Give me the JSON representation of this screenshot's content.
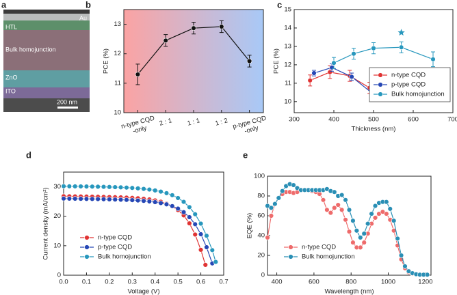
{
  "sem_image": {
    "panel": "a",
    "layers": [
      "Au",
      "HTL",
      "Bulk homojunction",
      "ZnO",
      "ITO"
    ],
    "scale_bar": "200 nm"
  },
  "chart_data": [
    {
      "panel": "b",
      "type": "line",
      "ylabel": "PCE (%)",
      "categories": [
        "n-type CQD\n-only",
        "2 : 1",
        "1 : 1",
        "1 : 2",
        "p-type CQD\n-only"
      ],
      "values": [
        11.3,
        12.45,
        12.87,
        12.92,
        11.75
      ],
      "errors": [
        0.35,
        0.2,
        0.2,
        0.2,
        0.2
      ],
      "color": "#111111",
      "ylim": [
        10,
        13.5
      ],
      "yticks": [
        10,
        11,
        12,
        13
      ]
    },
    {
      "panel": "c",
      "type": "line",
      "xlabel": "Thickness (nm)",
      "ylabel": "PCE (%)",
      "xlim": [
        300,
        700
      ],
      "xticks": [
        300,
        400,
        500,
        600,
        700
      ],
      "ylim": [
        9.4,
        15
      ],
      "yticks": [
        10,
        11,
        12,
        13,
        14,
        15
      ],
      "legend": "lower right",
      "series": [
        {
          "name": "n-type CQD",
          "color": "#e03333",
          "x": [
            340,
            390,
            440,
            490
          ],
          "values": [
            11.15,
            11.6,
            11.4,
            10.75
          ],
          "errors": [
            0.3,
            0.35,
            0.3,
            0.3
          ]
        },
        {
          "name": "p-type CQD",
          "color": "#2647b5",
          "x": [
            350,
            395,
            445,
            500
          ],
          "values": [
            11.55,
            11.85,
            11.35,
            10.4
          ],
          "errors": [
            0.15,
            0.2,
            0.2,
            0.3
          ]
        },
        {
          "name": "Bulk homojunction",
          "color": "#2797bd",
          "x": [
            400,
            450,
            500,
            570,
            650
          ],
          "values": [
            12.1,
            12.6,
            12.9,
            12.95,
            12.3
          ],
          "errors": [
            0.3,
            0.3,
            0.3,
            0.3,
            0.4
          ]
        }
      ],
      "star": {
        "x": 570,
        "y": 13.75,
        "color": "#2797bd"
      }
    },
    {
      "panel": "d",
      "type": "line",
      "xlabel": "Voltage (V)",
      "ylabel": "Current density (mA/cm²)",
      "xlim": [
        0,
        0.7
      ],
      "xticks": [
        {
          "value": 0,
          "label": "0.0"
        },
        0.1,
        0.2,
        0.3,
        0.4,
        0.5,
        0.6,
        0.7
      ],
      "ylim": [
        0,
        35
      ],
      "yticks": [
        0,
        10,
        20,
        30
      ],
      "legend": "lower left",
      "series": [
        {
          "name": "n-type CQD",
          "color": "#e03333",
          "x": [
            0,
            0.025,
            0.05,
            0.075,
            0.1,
            0.125,
            0.15,
            0.175,
            0.2,
            0.225,
            0.25,
            0.275,
            0.3,
            0.325,
            0.35,
            0.375,
            0.4,
            0.425,
            0.45,
            0.475,
            0.5,
            0.525,
            0.55,
            0.575,
            0.6,
            0.62
          ],
          "values": [
            26.8,
            26.78,
            26.75,
            26.72,
            26.7,
            26.66,
            26.62,
            26.58,
            26.53,
            26.48,
            26.42,
            26.34,
            26.25,
            26.12,
            25.95,
            25.72,
            25.4,
            24.95,
            24.3,
            23.4,
            22.1,
            20.3,
            17.6,
            13.8,
            8.6,
            3.5
          ]
        },
        {
          "name": "p-type CQD",
          "color": "#2647b5",
          "x": [
            0,
            0.025,
            0.05,
            0.075,
            0.1,
            0.125,
            0.15,
            0.175,
            0.2,
            0.225,
            0.25,
            0.275,
            0.3,
            0.325,
            0.35,
            0.375,
            0.4,
            0.425,
            0.45,
            0.475,
            0.5,
            0.525,
            0.55,
            0.575,
            0.6,
            0.625,
            0.65
          ],
          "values": [
            26.0,
            25.98,
            25.96,
            25.93,
            25.9,
            25.87,
            25.83,
            25.79,
            25.74,
            25.69,
            25.63,
            25.56,
            25.47,
            25.36,
            25.22,
            25.04,
            24.8,
            24.48,
            24.05,
            23.45,
            22.6,
            21.4,
            19.7,
            17.3,
            13.9,
            9.5,
            4.0
          ]
        },
        {
          "name": "Bulk homojunction",
          "color": "#2797bd",
          "x": [
            0,
            0.025,
            0.05,
            0.075,
            0.1,
            0.125,
            0.15,
            0.175,
            0.2,
            0.225,
            0.25,
            0.275,
            0.3,
            0.325,
            0.35,
            0.375,
            0.4,
            0.425,
            0.45,
            0.475,
            0.5,
            0.525,
            0.55,
            0.575,
            0.6,
            0.625,
            0.65,
            0.665
          ],
          "values": [
            30.2,
            30.18,
            30.16,
            30.14,
            30.11,
            30.08,
            30.04,
            30.0,
            29.95,
            29.89,
            29.82,
            29.73,
            29.62,
            29.48,
            29.3,
            29.07,
            28.77,
            28.37,
            27.85,
            27.15,
            26.2,
            24.9,
            23.1,
            20.7,
            17.5,
            13.4,
            8.5,
            4.5
          ]
        }
      ]
    },
    {
      "panel": "e",
      "type": "line",
      "xlabel": "Wavelength (nm)",
      "ylabel": "EQE (%)",
      "xlim": [
        350,
        1230
      ],
      "xticks": [
        400,
        600,
        800,
        1000,
        1200
      ],
      "ylim": [
        0,
        100
      ],
      "yticks": [
        0,
        20,
        40,
        60,
        80,
        100
      ],
      "legend": "lower left",
      "x": [
        350,
        370,
        390,
        410,
        430,
        450,
        470,
        490,
        510,
        530,
        550,
        570,
        590,
        610,
        630,
        650,
        670,
        690,
        710,
        730,
        750,
        770,
        790,
        810,
        830,
        850,
        870,
        890,
        910,
        930,
        950,
        970,
        990,
        1010,
        1030,
        1050,
        1070,
        1090,
        1110,
        1130,
        1150,
        1170,
        1190,
        1210
      ],
      "series": [
        {
          "name": "n-type CQD",
          "color": "#ee6b6b",
          "values": [
            38,
            60,
            72,
            78,
            82,
            84,
            84,
            83,
            84,
            86,
            86,
            86,
            85,
            84,
            82,
            76,
            66,
            63,
            68,
            71,
            66,
            56,
            44,
            33,
            28,
            28,
            33,
            42,
            52,
            58,
            62,
            64,
            62,
            56,
            45,
            30,
            16,
            7,
            3,
            1.5,
            1,
            0.5,
            0.5,
            0.5
          ]
        },
        {
          "name": "Bulk homojunction",
          "color": "#2a8fb5",
          "values": [
            70,
            68,
            72,
            78,
            85,
            90,
            92,
            91,
            88,
            86,
            86,
            86,
            86,
            86,
            86,
            86,
            87,
            85,
            84,
            80,
            81,
            76,
            66,
            55,
            45,
            38,
            42,
            52,
            62,
            70,
            73,
            74,
            74,
            67,
            55,
            37,
            20,
            9,
            4,
            2,
            1,
            0.5,
            0.5,
            0.5
          ]
        }
      ]
    }
  ]
}
